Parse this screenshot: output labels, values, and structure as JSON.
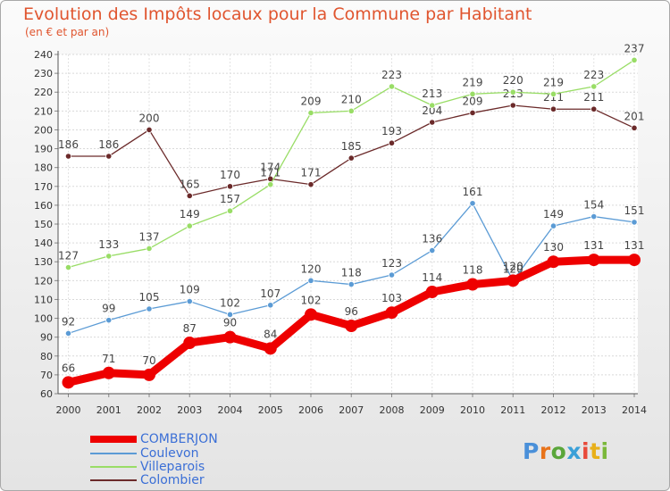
{
  "chart_data": {
    "type": "line",
    "title": "Evolution des Impôts locaux pour la Commune par Habitant",
    "subtitle": "(en € et par an)",
    "x": [
      "2000",
      "2001",
      "2002",
      "2003",
      "2004",
      "2005",
      "2006",
      "2007",
      "2008",
      "2009",
      "2010",
      "2011",
      "2012",
      "2013",
      "2014"
    ],
    "ylim": [
      60,
      240
    ],
    "yticks": [
      60,
      70,
      80,
      90,
      100,
      110,
      120,
      130,
      140,
      150,
      160,
      170,
      180,
      190,
      200,
      210,
      220,
      230,
      240
    ],
    "grid": true,
    "legend_position": "bottom-left",
    "series": [
      {
        "name": "COMBERJON",
        "color": "#ee0000",
        "values": [
          66,
          71,
          70,
          87,
          90,
          84,
          102,
          96,
          103,
          114,
          118,
          120,
          130,
          131,
          131
        ]
      },
      {
        "name": "Coulevon",
        "color": "#5b9bd5",
        "values": [
          92,
          99,
          105,
          109,
          102,
          107,
          120,
          118,
          123,
          136,
          161,
          120,
          149,
          154,
          151
        ]
      },
      {
        "name": "Villeparois",
        "color": "#99dd66",
        "values": [
          127,
          133,
          137,
          149,
          157,
          171,
          209,
          210,
          223,
          213,
          219,
          220,
          219,
          223,
          237
        ]
      },
      {
        "name": "Colombier",
        "color": "#6b2a2a",
        "values": [
          186,
          186,
          200,
          165,
          170,
          174,
          171,
          185,
          193,
          204,
          209,
          213,
          211,
          211,
          201
        ]
      }
    ]
  },
  "logo": {
    "text": "Proxiti",
    "letters": [
      "P",
      "r",
      "o",
      "x",
      "i",
      "t",
      "i"
    ],
    "colors": [
      "#4a90d9",
      "#e8731a",
      "#5aa63a",
      "#3aa0d8",
      "#e84a3a",
      "#e8b01a",
      "#7ab83a"
    ]
  }
}
